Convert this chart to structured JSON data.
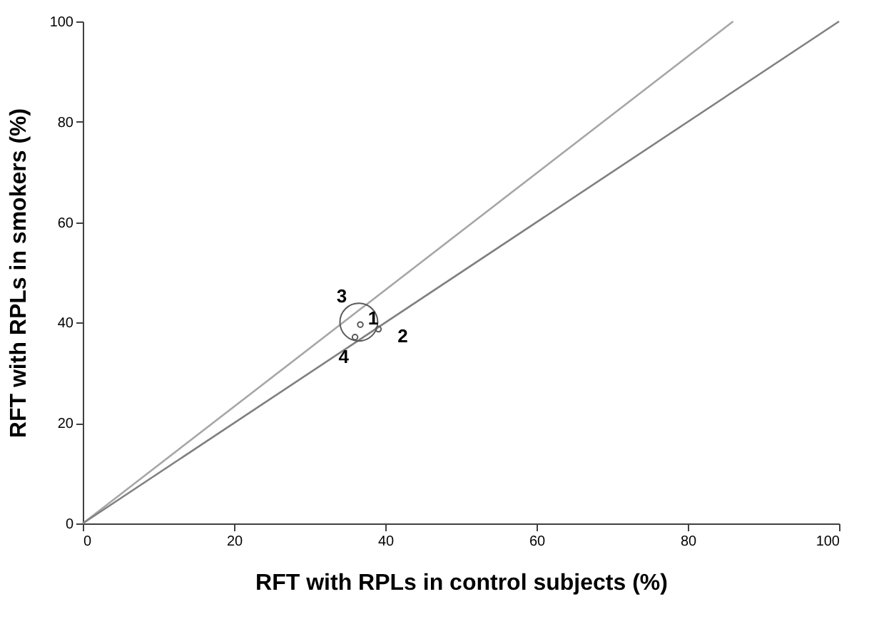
{
  "chart_data": {
    "type": "bubble",
    "xlabel": "RFT with RPLs in control subjects (%)",
    "ylabel": "RFT with RPLs in smokers (%)",
    "xlim": [
      0,
      100
    ],
    "ylim": [
      0,
      100
    ],
    "xticks": [
      0,
      20,
      40,
      60,
      80,
      100
    ],
    "yticks": [
      0,
      20,
      40,
      60,
      80,
      100
    ],
    "grid": false,
    "series": [
      {
        "type": "line",
        "color": "#a6a6a6",
        "line_style": "solid",
        "x": [
          0,
          86
        ],
        "values": [
          0,
          100
        ]
      },
      {
        "type": "line",
        "color": "#808080",
        "line_style": "solid",
        "x": [
          0,
          100
        ],
        "values": [
          0,
          100
        ]
      },
      {
        "color": "#595959",
        "x": [
          36.7,
          39.1,
          36.5,
          36.0
        ],
        "values": [
          39.6,
          38.7,
          40.1,
          37.1
        ],
        "sizes": [
          0.02,
          0.02,
          1,
          0.02
        ]
      }
    ],
    "annotations": [
      {
        "text": "1",
        "x": 36.7,
        "y": 39.6
      },
      {
        "text": "2",
        "x": 39.1,
        "y": 38.7
      },
      {
        "text": "3",
        "x": 36.5,
        "y": 40.1
      },
      {
        "text": "4",
        "x": 36.0,
        "y": 37.1
      }
    ]
  }
}
